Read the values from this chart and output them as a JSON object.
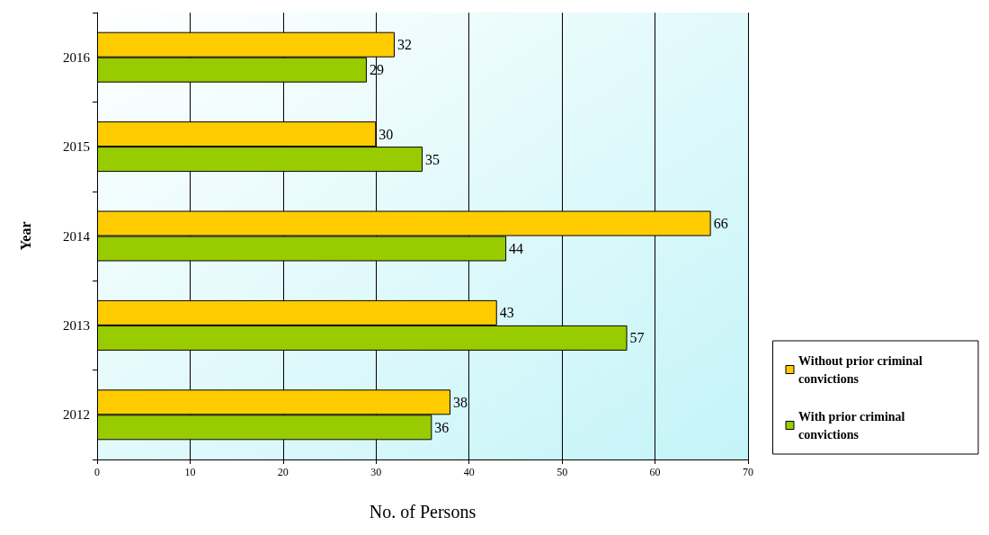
{
  "chart_data": {
    "type": "bar",
    "orientation": "horizontal",
    "categories": [
      "2016",
      "2015",
      "2014",
      "2013",
      "2012"
    ],
    "series": [
      {
        "name": "Without prior criminal convictions",
        "color": "#ffcc00",
        "values": [
          32,
          30,
          66,
          43,
          38
        ]
      },
      {
        "name": "With prior criminal convictions",
        "color": "#99cc00",
        "values": [
          29,
          35,
          44,
          57,
          36
        ]
      }
    ],
    "xlabel": "No. of Persons",
    "ylabel": "Year",
    "xlim": [
      0,
      70
    ],
    "xticks": [
      0,
      10,
      20,
      30,
      40,
      50,
      60,
      70
    ],
    "grid": "x",
    "legend": "right",
    "data_labels": true
  }
}
